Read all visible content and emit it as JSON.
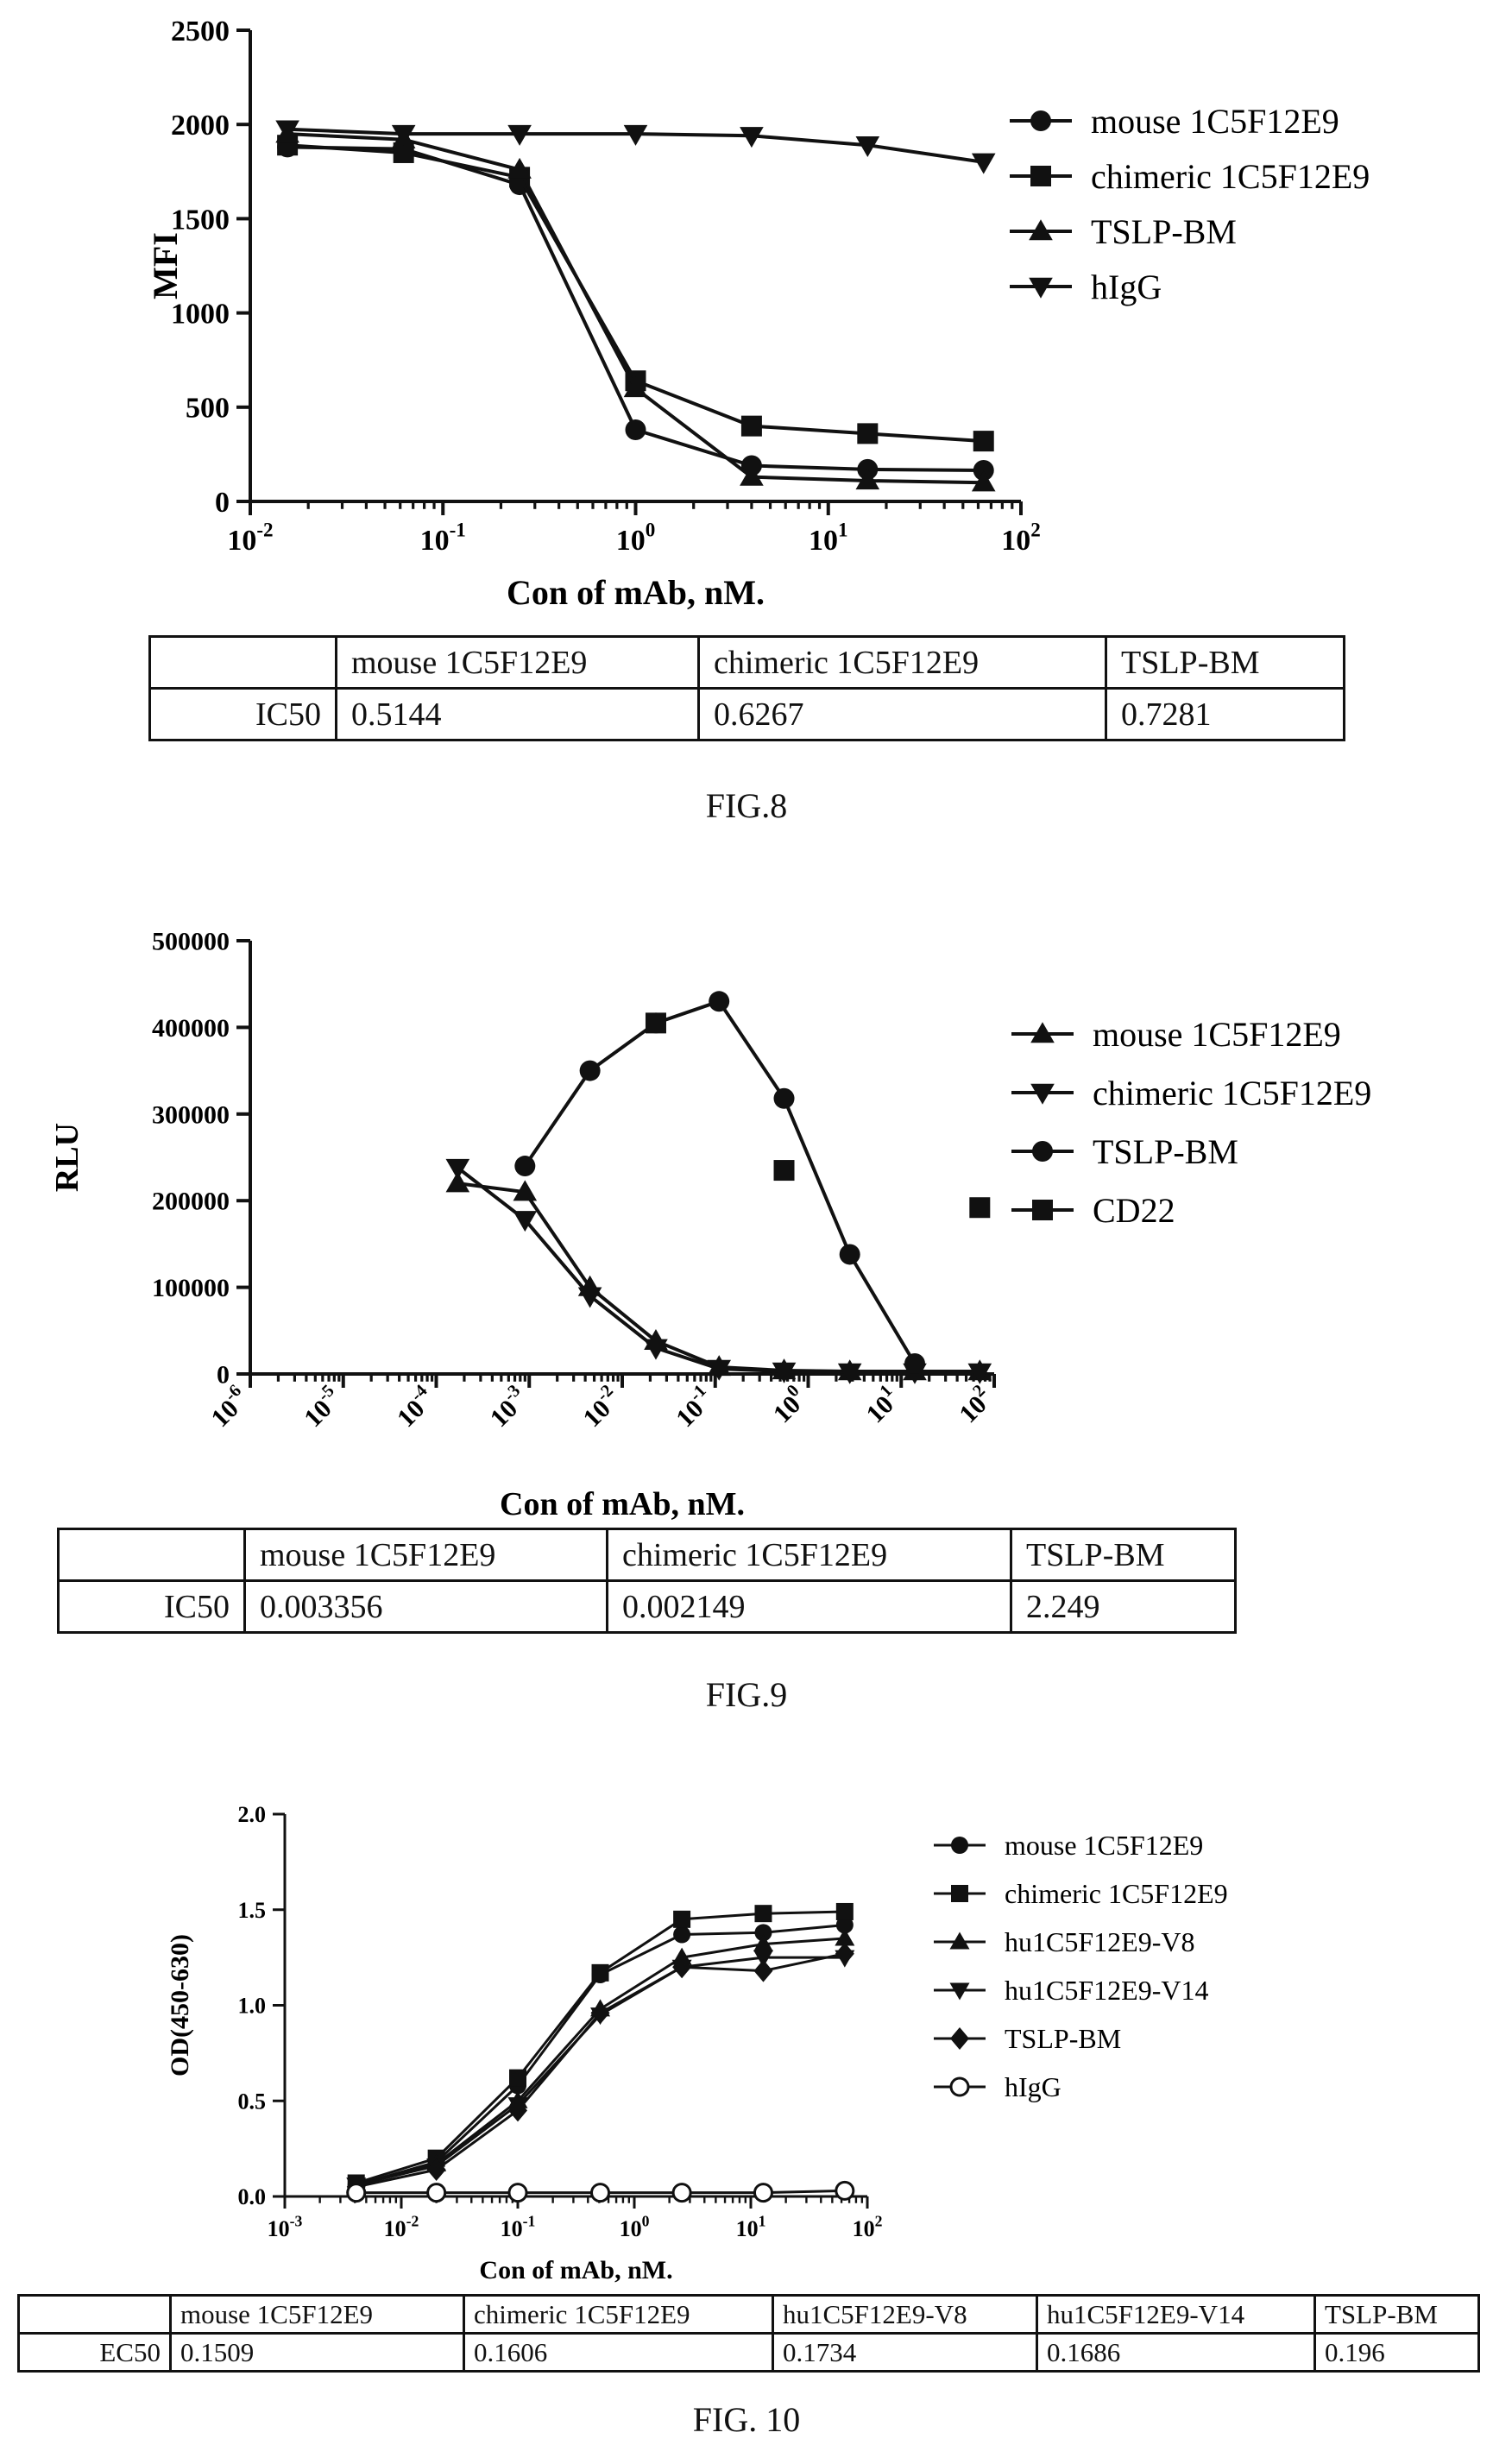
{
  "figures": [
    {
      "id": "fig8",
      "caption": "FIG.8",
      "table": {
        "headers": [
          "",
          "mouse 1C5F12E9",
          "chimeric 1C5F12E9",
          "TSLP-BM"
        ],
        "row_label": "IC50",
        "values": [
          "0.5144",
          "0.6267",
          "0.7281"
        ]
      }
    },
    {
      "id": "fig9",
      "caption": "FIG.9",
      "table": {
        "headers": [
          "",
          "mouse 1C5F12E9",
          "chimeric 1C5F12E9",
          "TSLP-BM"
        ],
        "row_label": "IC50",
        "values": [
          "0.003356",
          "0.002149",
          "2.249"
        ]
      }
    },
    {
      "id": "fig10",
      "caption": "FIG. 10",
      "table": {
        "headers": [
          "",
          "mouse 1C5F12E9",
          "chimeric 1C5F12E9",
          "hu1C5F12E9-V8",
          "hu1C5F12E9-V14",
          "TSLP-BM"
        ],
        "row_label": "EC50",
        "values": [
          "0.1509",
          "0.1606",
          "0.1734",
          "0.1686",
          "0.196"
        ]
      }
    }
  ],
  "chart_data": [
    {
      "id": "fig8",
      "type": "line",
      "xscale": "log",
      "xlim": [
        0.01,
        100
      ],
      "ylim": [
        0,
        2500
      ],
      "xlabel": "Con of mAb, nM.",
      "ylabel": "MFI",
      "x_ticks": [
        0.01,
        0.1,
        1,
        10,
        100
      ],
      "y_ticks": [
        0,
        500,
        1000,
        1500,
        2000,
        2500
      ],
      "legend": "top-right",
      "series": [
        {
          "name": "mouse 1C5F12E9",
          "marker": "circle",
          "x": [
            0.0156,
            0.0625,
            0.25,
            1,
            4,
            16,
            64
          ],
          "y": [
            1880,
            1870,
            1680,
            380,
            190,
            170,
            165
          ]
        },
        {
          "name": "chimeric 1C5F12E9",
          "marker": "square",
          "x": [
            0.0156,
            0.0625,
            0.25,
            1,
            4,
            16,
            64
          ],
          "y": [
            1890,
            1850,
            1720,
            640,
            400,
            360,
            320
          ]
        },
        {
          "name": "TSLP-BM",
          "marker": "triangle-up",
          "x": [
            0.0156,
            0.0625,
            0.25,
            1,
            4,
            16,
            64
          ],
          "y": [
            1950,
            1920,
            1760,
            600,
            130,
            110,
            100
          ]
        },
        {
          "name": "hIgG",
          "marker": "triangle-down",
          "x": [
            0.0156,
            0.0625,
            0.25,
            1,
            4,
            16,
            64
          ],
          "y": [
            1975,
            1950,
            1950,
            1950,
            1940,
            1890,
            1800
          ]
        }
      ]
    },
    {
      "id": "fig9",
      "type": "line",
      "xscale": "log",
      "xlim": [
        1e-06,
        100
      ],
      "ylim": [
        0,
        500000
      ],
      "xlabel": "Con of mAb, nM.",
      "ylabel": "RLU",
      "x_ticks": [
        1e-06,
        1e-05,
        0.0001,
        0.001,
        0.01,
        0.1,
        1,
        10,
        100
      ],
      "y_ticks": [
        0,
        100000,
        200000,
        300000,
        400000,
        500000
      ],
      "legend": "top-right",
      "series": [
        {
          "name": "mouse 1C5F12E9",
          "marker": "triangle-up",
          "x": [
            0.00017,
            0.0009,
            0.0045,
            0.023,
            0.11,
            0.55,
            2.8,
            14,
            70
          ],
          "y": [
            220000,
            210000,
            100000,
            38000,
            8000,
            4000,
            3000,
            3000,
            3000
          ]
        },
        {
          "name": "chimeric 1C5F12E9",
          "marker": "triangle-down",
          "x": [
            0.00017,
            0.0009,
            0.0045,
            0.023,
            0.11,
            0.55,
            2.8,
            14,
            70
          ],
          "y": [
            238000,
            178000,
            90000,
            30000,
            6000,
            3000,
            2000,
            2000,
            2000
          ]
        },
        {
          "name": "TSLP-BM",
          "marker": "circle",
          "x": [
            0.0009,
            0.0045,
            0.023,
            0.11,
            0.55,
            2.8,
            14
          ],
          "y": [
            240000,
            350000,
            405000,
            430000,
            318000,
            138000,
            12000
          ]
        },
        {
          "name": "CD22",
          "marker": "square",
          "x": [
            0.023,
            0.55,
            70
          ],
          "y": [
            405000,
            235000,
            192000
          ]
        }
      ]
    },
    {
      "id": "fig10",
      "type": "line",
      "xscale": "log",
      "xlim": [
        0.001,
        100
      ],
      "ylim": [
        0,
        2.0
      ],
      "xlabel": "Con of mAb, nM.",
      "ylabel": "OD(450-630)",
      "x_ticks": [
        0.001,
        0.01,
        0.1,
        1,
        10,
        100
      ],
      "y_ticks": [
        0.0,
        0.5,
        1.0,
        1.5,
        2.0
      ],
      "legend": "top-right",
      "series": [
        {
          "name": "mouse 1C5F12E9",
          "marker": "circle",
          "x": [
            0.0041,
            0.02,
            0.1,
            0.51,
            2.56,
            12.8,
            64
          ],
          "y": [
            0.06,
            0.18,
            0.58,
            1.16,
            1.37,
            1.38,
            1.42
          ]
        },
        {
          "name": "chimeric 1C5F12E9",
          "marker": "square",
          "x": [
            0.0041,
            0.02,
            0.1,
            0.51,
            2.56,
            12.8,
            64
          ],
          "y": [
            0.07,
            0.2,
            0.62,
            1.17,
            1.45,
            1.48,
            1.49
          ]
        },
        {
          "name": "hu1C5F12E9-V8",
          "marker": "triangle-up",
          "x": [
            0.0041,
            0.02,
            0.1,
            0.51,
            2.56,
            12.8,
            64
          ],
          "y": [
            0.06,
            0.17,
            0.5,
            0.98,
            1.25,
            1.32,
            1.35
          ]
        },
        {
          "name": "hu1C5F12E9-V14",
          "marker": "triangle-down",
          "x": [
            0.0041,
            0.02,
            0.1,
            0.51,
            2.56,
            12.8,
            64
          ],
          "y": [
            0.06,
            0.16,
            0.48,
            0.95,
            1.2,
            1.25,
            1.25
          ]
        },
        {
          "name": "TSLP-BM",
          "marker": "diamond",
          "x": [
            0.0041,
            0.02,
            0.1,
            0.51,
            2.56,
            12.8,
            64
          ],
          "y": [
            0.05,
            0.14,
            0.45,
            0.96,
            1.2,
            1.18,
            1.27
          ]
        },
        {
          "name": "hIgG",
          "marker": "open-circle",
          "x": [
            0.0041,
            0.02,
            0.1,
            0.51,
            2.56,
            12.8,
            64
          ],
          "y": [
            0.02,
            0.02,
            0.02,
            0.02,
            0.02,
            0.02,
            0.03
          ]
        }
      ]
    }
  ]
}
